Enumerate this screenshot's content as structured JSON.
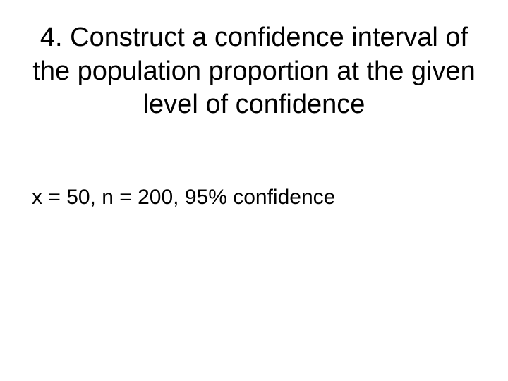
{
  "slide": {
    "title": "4.  Construct a confidence interval of the population proportion at the given level of confidence",
    "body": "x = 50, n = 200, 95% confidence",
    "title_fontsize": 38,
    "body_fontsize": 30,
    "text_color": "#000000",
    "background_color": "#ffffff"
  }
}
